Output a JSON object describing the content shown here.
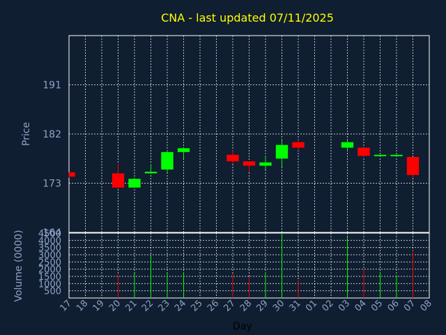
{
  "title": "CNA - last updated 07/11/2025",
  "colors": {
    "background": "#0f1e30",
    "title": "#ffff00",
    "axis_text": "#8fa3c8",
    "grid": "#ffffff",
    "up": "#00ff00",
    "down": "#ff0000"
  },
  "chart_data": [
    {
      "type": "candlestick",
      "ylabel": "Price",
      "ylim": [
        164,
        200
      ],
      "yticks": [
        164,
        173,
        182,
        191
      ],
      "grid": true,
      "series": [
        {
          "day": "17",
          "open": 175.0,
          "high": 175.0,
          "low": 174.0,
          "close": 174.2
        },
        {
          "day": "20",
          "open": 174.8,
          "high": 176.5,
          "low": 172.0,
          "close": 172.2
        },
        {
          "day": "21",
          "open": 172.2,
          "high": 174.0,
          "low": 172.2,
          "close": 173.8
        },
        {
          "day": "22",
          "open": 174.8,
          "high": 176.5,
          "low": 174.8,
          "close": 175.1
        },
        {
          "day": "23",
          "open": 175.5,
          "high": 179.0,
          "low": 175.0,
          "close": 178.7
        },
        {
          "day": "24",
          "open": 178.7,
          "high": 179.5,
          "low": 177.5,
          "close": 179.4
        },
        {
          "day": "27",
          "open": 178.2,
          "high": 179.0,
          "low": 176.5,
          "close": 177.0
        },
        {
          "day": "28",
          "open": 177.0,
          "high": 177.0,
          "low": 175.0,
          "close": 176.2
        },
        {
          "day": "29",
          "open": 176.2,
          "high": 178.0,
          "low": 175.5,
          "close": 176.8
        },
        {
          "day": "30",
          "open": 177.5,
          "high": 181.0,
          "low": 176.0,
          "close": 180.0
        },
        {
          "day": "31",
          "open": 180.5,
          "high": 181.0,
          "low": 179.0,
          "close": 179.5
        },
        {
          "day": "03",
          "open": 179.5,
          "high": 181.0,
          "low": 179.0,
          "close": 180.5
        },
        {
          "day": "04",
          "open": 179.5,
          "high": 179.5,
          "low": 177.8,
          "close": 178.0
        },
        {
          "day": "05",
          "open": 178.0,
          "high": 178.2,
          "low": 177.8,
          "close": 178.2
        },
        {
          "day": "06",
          "open": 178.0,
          "high": 178.2,
          "low": 177.8,
          "close": 178.2
        },
        {
          "day": "07",
          "open": 177.8,
          "high": 177.8,
          "low": 174.0,
          "close": 174.5
        }
      ]
    },
    {
      "type": "bar",
      "ylabel": "Volume (0000)",
      "ylim": [
        0,
        4500
      ],
      "yticks": [
        500,
        1000,
        1500,
        2000,
        2500,
        3000,
        3500,
        4000,
        4500
      ],
      "xlabel": "Day",
      "categories": [
        "17",
        "18",
        "19",
        "20",
        "21",
        "22",
        "23",
        "24",
        "25",
        "26",
        "27",
        "28",
        "29",
        "30",
        "31",
        "01",
        "02",
        "03",
        "04",
        "05",
        "06",
        "07",
        "08"
      ],
      "grid": true,
      "series": [
        {
          "day": "20",
          "value": 1600,
          "direction": "down"
        },
        {
          "day": "21",
          "value": 1700,
          "direction": "up"
        },
        {
          "day": "22",
          "value": 2900,
          "direction": "up"
        },
        {
          "day": "23",
          "value": 1700,
          "direction": "up"
        },
        {
          "day": "24",
          "value": 1800,
          "direction": "up"
        },
        {
          "day": "27",
          "value": 1700,
          "direction": "down"
        },
        {
          "day": "28",
          "value": 1500,
          "direction": "down"
        },
        {
          "day": "29",
          "value": 1800,
          "direction": "up"
        },
        {
          "day": "30",
          "value": 4500,
          "direction": "up"
        },
        {
          "day": "31",
          "value": 1200,
          "direction": "down"
        },
        {
          "day": "03",
          "value": 4200,
          "direction": "up"
        },
        {
          "day": "04",
          "value": 2000,
          "direction": "down"
        },
        {
          "day": "05",
          "value": 1800,
          "direction": "up"
        },
        {
          "day": "06",
          "value": 1600,
          "direction": "up"
        },
        {
          "day": "07",
          "value": 3300,
          "direction": "down"
        }
      ]
    }
  ]
}
